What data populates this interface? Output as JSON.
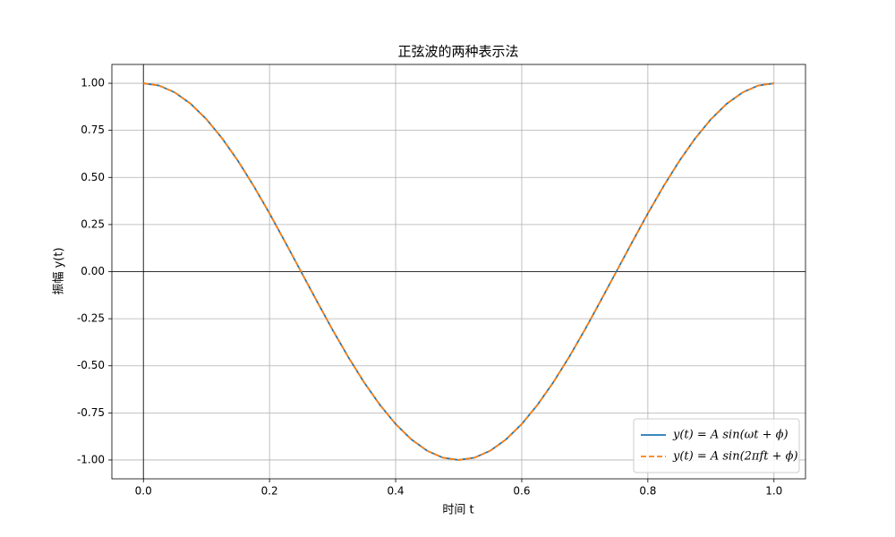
{
  "chart_data": {
    "type": "line",
    "title": "正弦波的两种表示法",
    "x_label": "时间 t",
    "y_label": "振幅 y(t)",
    "x": [
      0,
      0.025,
      0.05,
      0.075,
      0.1,
      0.125,
      0.15,
      0.175,
      0.2,
      0.225,
      0.25,
      0.275,
      0.3,
      0.325,
      0.35,
      0.375,
      0.4,
      0.425,
      0.45,
      0.475,
      0.5,
      0.525,
      0.55,
      0.575,
      0.6,
      0.625,
      0.65,
      0.675,
      0.7,
      0.725,
      0.75,
      0.775,
      0.8,
      0.825,
      0.85,
      0.875,
      0.9,
      0.925,
      0.95,
      0.975,
      1
    ],
    "series": [
      {
        "name": "y(t) = A sin(ωt + ϕ)",
        "color": "#1f77b4",
        "dash": "solid",
        "values": [
          1,
          0.988,
          0.951,
          0.891,
          0.809,
          0.707,
          0.588,
          0.454,
          0.309,
          0.156,
          0,
          -0.156,
          -0.309,
          -0.454,
          -0.588,
          -0.707,
          -0.809,
          -0.891,
          -0.951,
          -0.988,
          -1,
          -0.988,
          -0.951,
          -0.891,
          -0.809,
          -0.707,
          -0.588,
          -0.454,
          -0.309,
          -0.156,
          0,
          0.156,
          0.309,
          0.454,
          0.588,
          0.707,
          0.809,
          0.891,
          0.951,
          0.988,
          1
        ]
      },
      {
        "name": "y(t) = A sin(2πft + ϕ)",
        "color": "#ff7f0e",
        "dash": "dashed",
        "values": [
          1,
          0.988,
          0.951,
          0.891,
          0.809,
          0.707,
          0.588,
          0.454,
          0.309,
          0.156,
          0,
          -0.156,
          -0.309,
          -0.454,
          -0.588,
          -0.707,
          -0.809,
          -0.891,
          -0.951,
          -0.988,
          -1,
          -0.988,
          -0.951,
          -0.891,
          -0.809,
          -0.707,
          -0.588,
          -0.454,
          -0.309,
          -0.156,
          0,
          0.156,
          0.309,
          0.454,
          0.588,
          0.707,
          0.809,
          0.891,
          0.951,
          0.988,
          1
        ]
      }
    ],
    "xlim": [
      -0.05,
      1.05
    ],
    "ylim": [
      -1.1,
      1.1
    ],
    "xticks": [
      {
        "value": 0,
        "label": "0.0"
      },
      {
        "value": 0.2,
        "label": "0.2"
      },
      {
        "value": 0.4,
        "label": "0.4"
      },
      {
        "value": 0.6,
        "label": "0.6"
      },
      {
        "value": 0.8,
        "label": "0.8"
      },
      {
        "value": 1,
        "label": "1.0"
      }
    ],
    "yticks": [
      {
        "value": -1,
        "label": "-1.00"
      },
      {
        "value": -0.75,
        "label": "-0.75"
      },
      {
        "value": -0.5,
        "label": "-0.50"
      },
      {
        "value": -0.25,
        "label": "-0.25"
      },
      {
        "value": 0,
        "label": "0.00"
      },
      {
        "value": 0.25,
        "label": "0.25"
      },
      {
        "value": 0.5,
        "label": "0.50"
      },
      {
        "value": 0.75,
        "label": "0.75"
      },
      {
        "value": 1,
        "label": "1.00"
      }
    ],
    "grid": true,
    "legend": "lower right"
  }
}
